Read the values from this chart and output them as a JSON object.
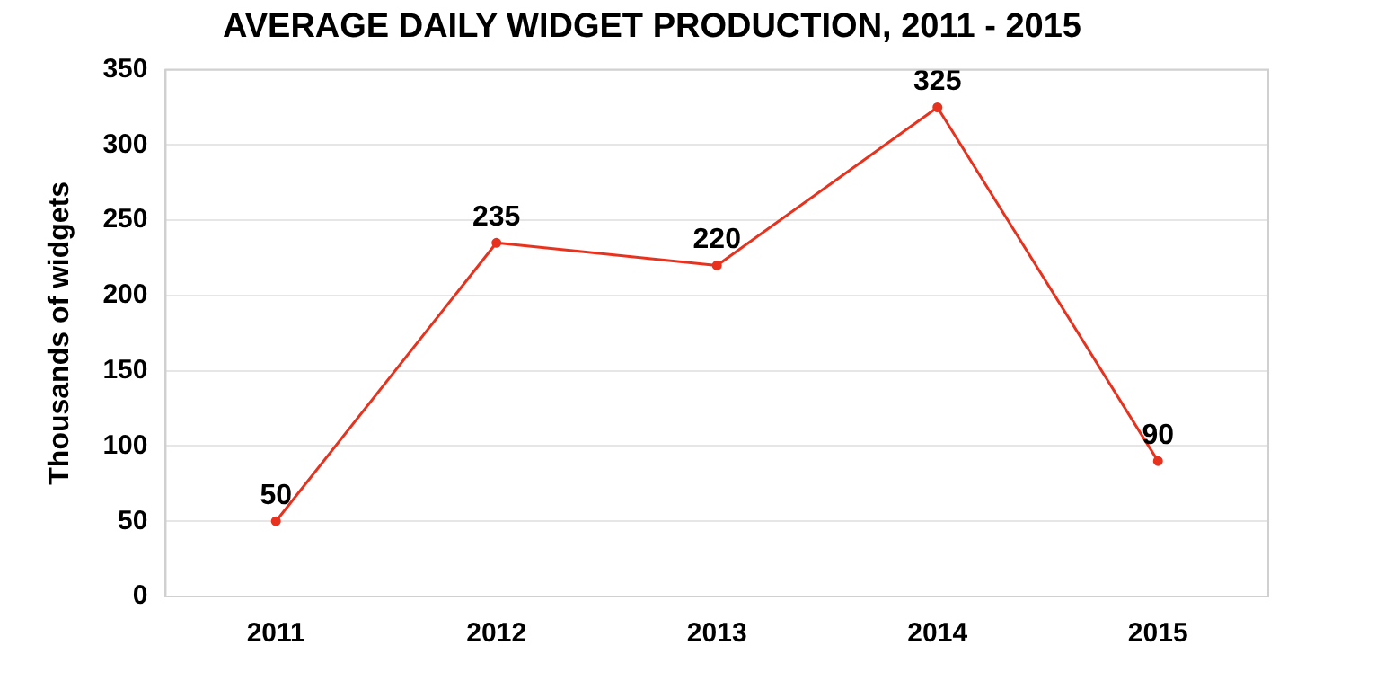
{
  "chart_data": {
    "type": "line",
    "title": "AVERAGE DAILY WIDGET PRODUCTION, 2011 - 2015",
    "ylabel": "Thousands of widgets",
    "categories": [
      "2011",
      "2012",
      "2013",
      "2014",
      "2015"
    ],
    "series": [
      {
        "color": "#e8321e",
        "values": [
          50,
          235,
          220,
          325,
          90
        ]
      }
    ],
    "ylim": [
      0,
      350
    ],
    "yticks": [
      0,
      50,
      100,
      150,
      200,
      250,
      300,
      350
    ],
    "grid": "y",
    "legend": false,
    "marker": "circle",
    "line_style": "solid",
    "data_labels": true
  }
}
